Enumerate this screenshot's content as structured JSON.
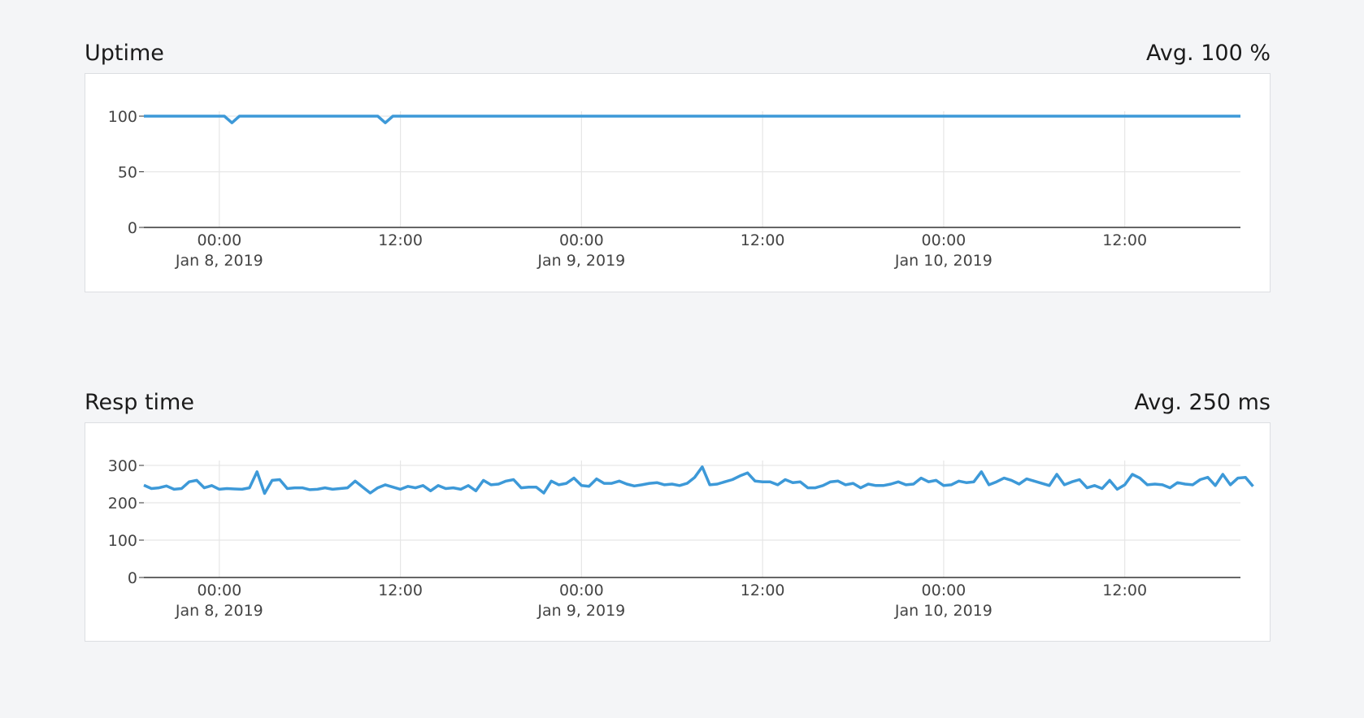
{
  "sections": [
    {
      "title": "Uptime",
      "avg_label": "Avg. 100 %"
    },
    {
      "title": "Resp time",
      "avg_label": "Avg. 250 ms"
    }
  ],
  "colors": {
    "line": "#3d99d8",
    "grid": "#e6e6e6",
    "axis": "#333333"
  },
  "chart_data": [
    {
      "type": "line",
      "title": "Uptime",
      "xlabel": "",
      "ylabel": "",
      "xlim": [
        "2019-01-07 19:00",
        "2019-01-10 19:40"
      ],
      "ylim": [
        0,
        100
      ],
      "yticks": [
        0,
        50,
        100
      ],
      "xticks": [
        {
          "x": "2019-01-08 00:00",
          "time": "00:00",
          "date": "Jan 8, 2019"
        },
        {
          "x": "2019-01-08 12:00",
          "time": "12:00",
          "date": ""
        },
        {
          "x": "2019-01-09 00:00",
          "time": "00:00",
          "date": "Jan 9, 2019"
        },
        {
          "x": "2019-01-09 12:00",
          "time": "12:00",
          "date": ""
        },
        {
          "x": "2019-01-10 00:00",
          "time": "00:00",
          "date": "Jan 10, 2019"
        },
        {
          "x": "2019-01-10 12:00",
          "time": "12:00",
          "date": ""
        }
      ],
      "grid": true,
      "series": [
        {
          "x": [
            "2019-01-07 19:00",
            "2019-01-08 00:20",
            "2019-01-08 00:50",
            "2019-01-08 01:20",
            "2019-01-08 10:30",
            "2019-01-08 11:00",
            "2019-01-08 11:30",
            "2019-01-10 19:40"
          ],
          "y": [
            100,
            100,
            94,
            100,
            100,
            94,
            100,
            100
          ]
        }
      ]
    },
    {
      "type": "line",
      "title": "Resp time",
      "xlabel": "",
      "ylabel": "",
      "xlim": [
        "2019-01-07 19:00",
        "2019-01-10 19:40"
      ],
      "ylim": [
        0,
        300
      ],
      "yticks": [
        0,
        100,
        200,
        300
      ],
      "xticks": [
        {
          "x": "2019-01-08 00:00",
          "time": "00:00",
          "date": "Jan 8, 2019"
        },
        {
          "x": "2019-01-08 12:00",
          "time": "12:00",
          "date": ""
        },
        {
          "x": "2019-01-09 00:00",
          "time": "00:00",
          "date": "Jan 9, 2019"
        },
        {
          "x": "2019-01-09 12:00",
          "time": "12:00",
          "date": ""
        },
        {
          "x": "2019-01-10 00:00",
          "time": "00:00",
          "date": "Jan 10, 2019"
        },
        {
          "x": "2019-01-10 12:00",
          "time": "12:00",
          "date": ""
        }
      ],
      "grid": true,
      "series": [
        {
          "x_start": "2019-01-07 19:00",
          "x_step": "30 min",
          "y": [
            247,
            238,
            240,
            245,
            236,
            238,
            256,
            260,
            240,
            246,
            236,
            238,
            237,
            236,
            240,
            283,
            225,
            260,
            262,
            238,
            240,
            240,
            235,
            236,
            240,
            236,
            238,
            240,
            258,
            242,
            226,
            240,
            248,
            242,
            236,
            244,
            240,
            246,
            232,
            246,
            238,
            240,
            236,
            246,
            232,
            260,
            248,
            250,
            258,
            262,
            240,
            242,
            242,
            226,
            258,
            248,
            252,
            266,
            246,
            244,
            264,
            252,
            252,
            258,
            250,
            245,
            248,
            252,
            254,
            248,
            250,
            246,
            252,
            268,
            296,
            248,
            250,
            256,
            262,
            272,
            280,
            258,
            256,
            256,
            248,
            262,
            254,
            256,
            240,
            240,
            246,
            256,
            258,
            248,
            252,
            240,
            250,
            246,
            246,
            250,
            256,
            248,
            250,
            266,
            256,
            260,
            246,
            248,
            258,
            254,
            256,
            283,
            248,
            256,
            266,
            260,
            250,
            264,
            258,
            252,
            246,
            276,
            248,
            256,
            262,
            240,
            246,
            238,
            260,
            236,
            248,
            276,
            266,
            248,
            250,
            248,
            240,
            254,
            250,
            248,
            262,
            268,
            246,
            276,
            248,
            266,
            268,
            244
          ]
        }
      ]
    }
  ]
}
